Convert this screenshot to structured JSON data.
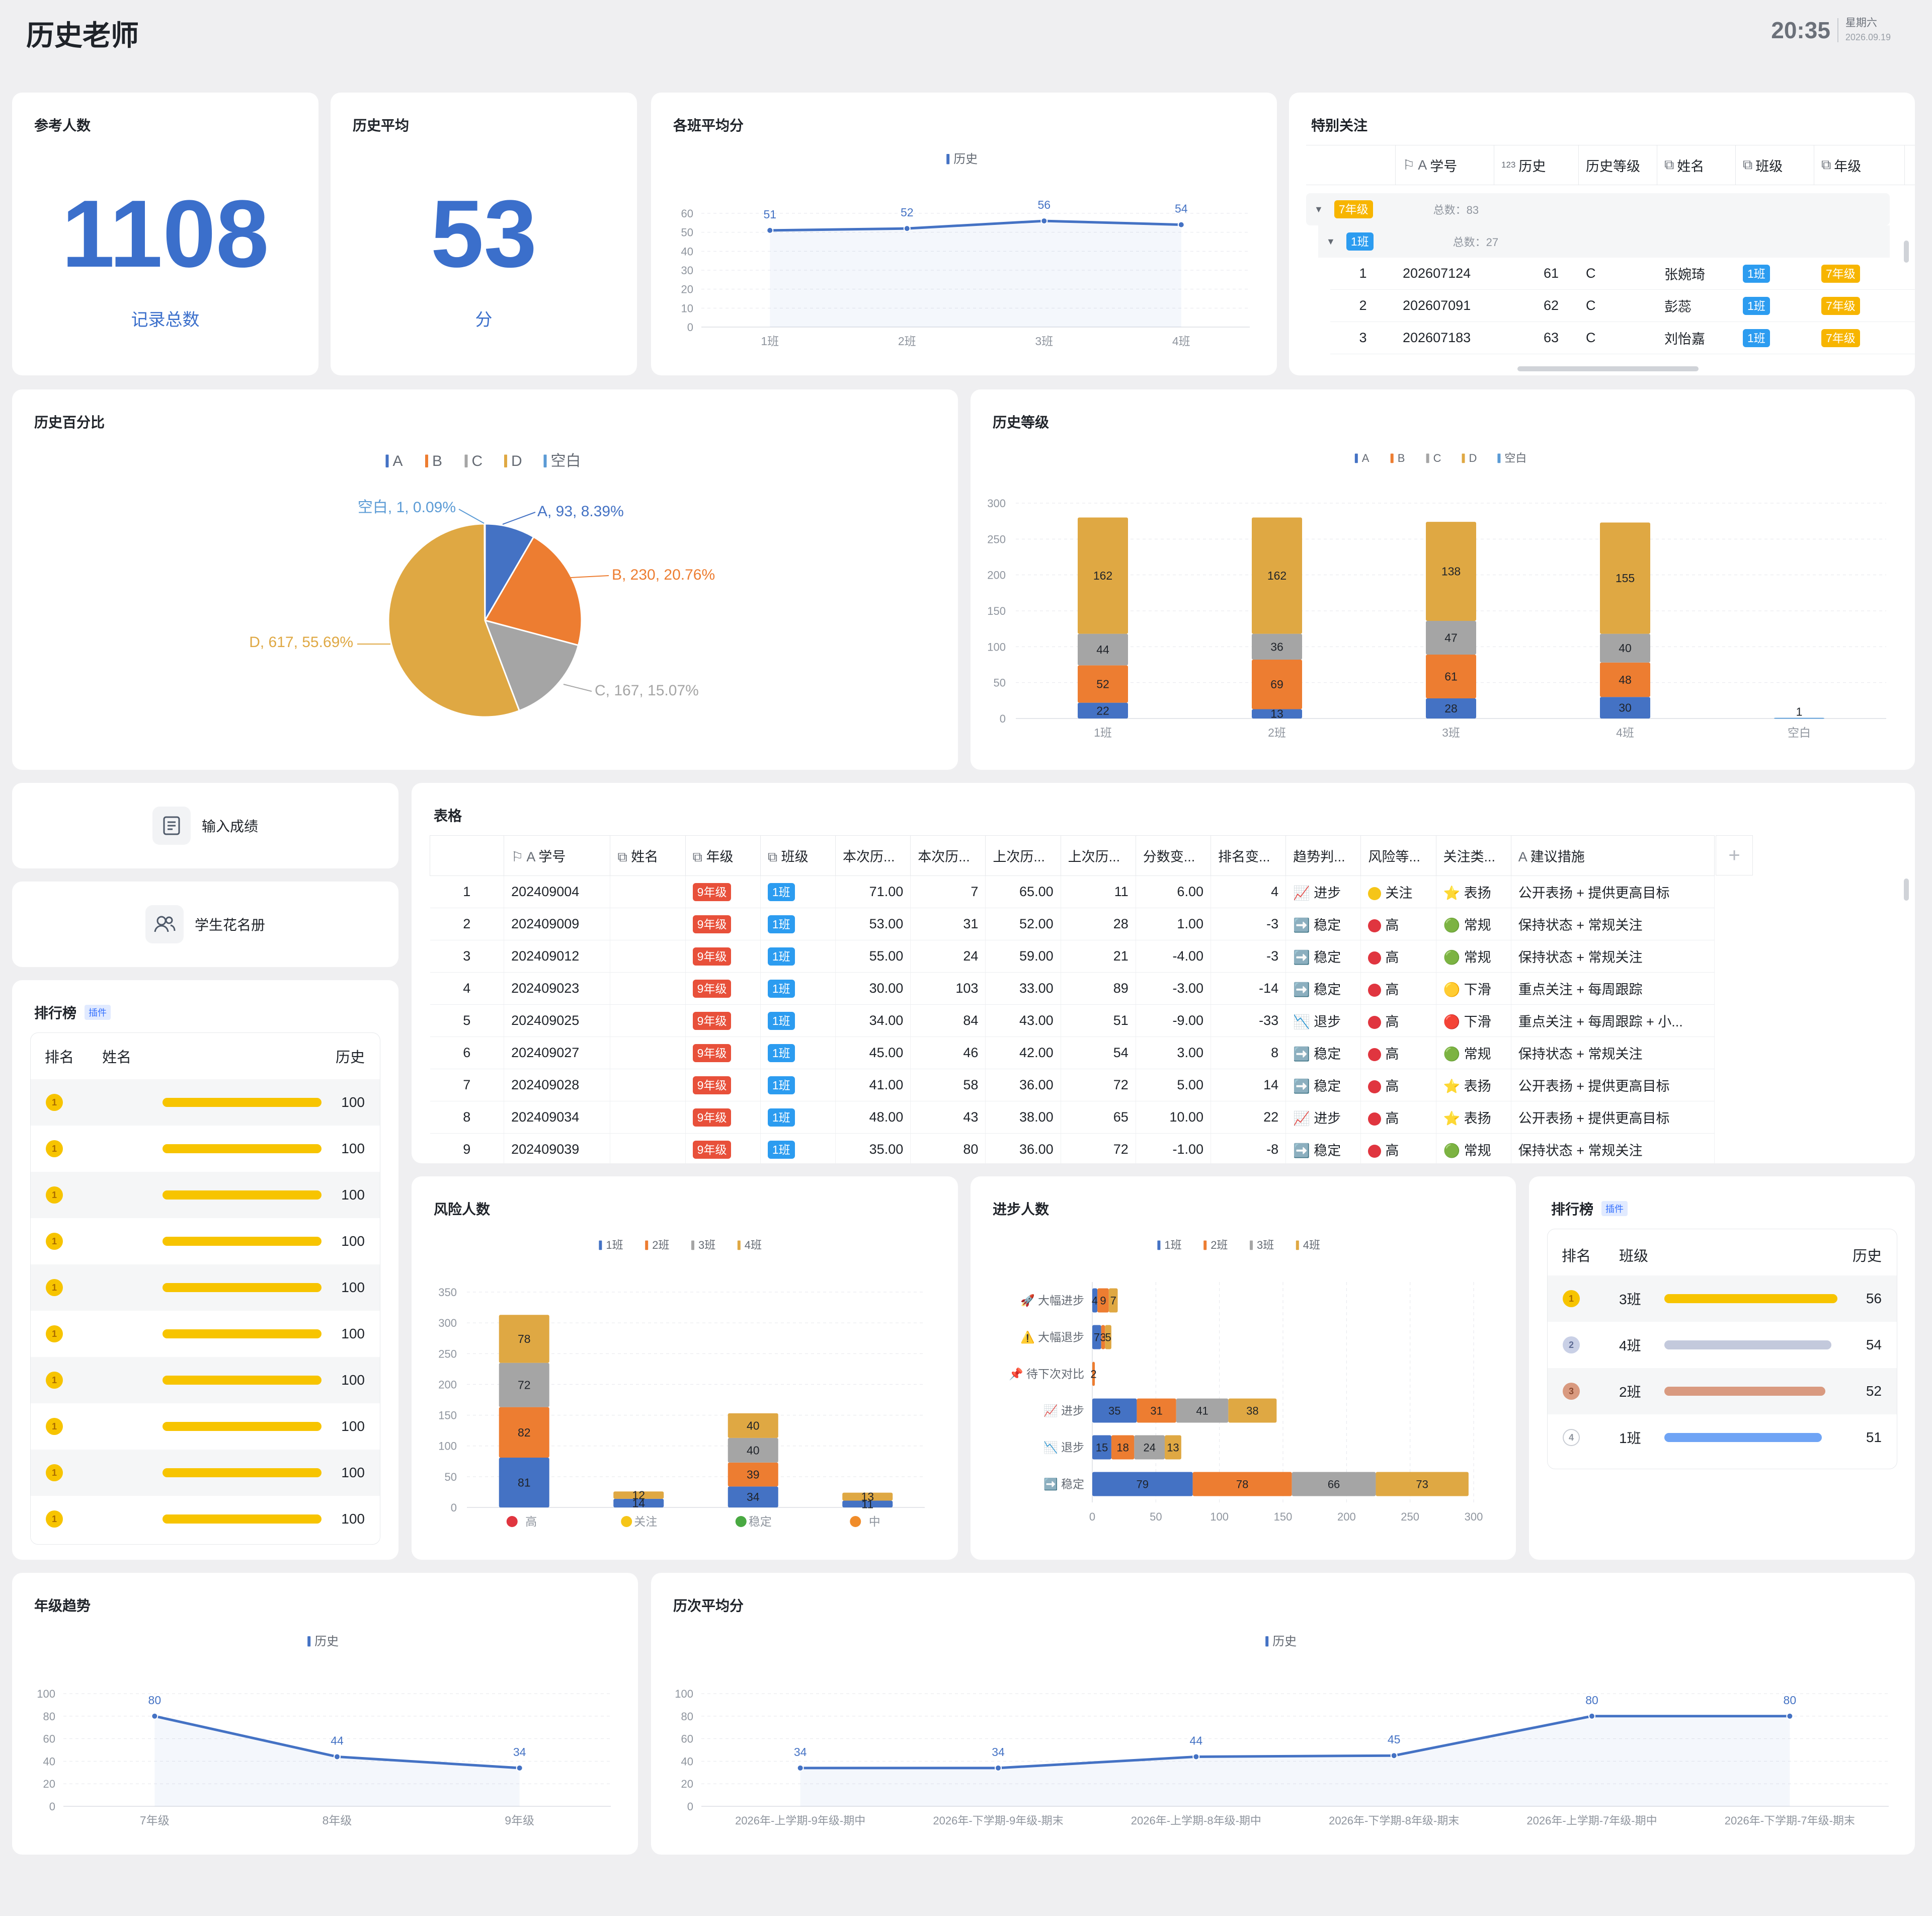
{
  "header": {
    "title": "历史老师",
    "time": "20:35",
    "weekday": "星期六",
    "date": "2026.09.19"
  },
  "stat_participants": {
    "title": "参考人数",
    "value": "1108",
    "caption": "记录总数",
    "color": "#3b6fcb"
  },
  "stat_average": {
    "title": "历史平均",
    "value": "53",
    "caption": "分",
    "color": "#3b6fcb"
  },
  "class_avg": {
    "title": "各班平均分"
  },
  "focus": {
    "title": "特别关注",
    "headers": [
      "学号",
      "历史",
      "历史等级",
      "姓名",
      "班级",
      "年级"
    ],
    "group_grade": "7年级",
    "group_grade_total": "总数：83",
    "group_class": "1班",
    "group_class_total": "总数：27",
    "rows": [
      {
        "idx": "1",
        "id": "202607124",
        "score": "61",
        "level": "C",
        "name": "张婉琦",
        "class": "1班",
        "grade": "7年级"
      },
      {
        "idx": "2",
        "id": "202607091",
        "score": "62",
        "level": "C",
        "name": "彭蕊",
        "class": "1班",
        "grade": "7年级"
      },
      {
        "idx": "3",
        "id": "202607183",
        "score": "63",
        "level": "C",
        "name": "刘怡嘉",
        "class": "1班",
        "grade": "7年级"
      }
    ]
  },
  "pie_card": {
    "title": "历史百分比"
  },
  "level_card": {
    "title": "历史等级"
  },
  "buttons": {
    "input_scores": "输入成绩",
    "student_roster": "学生花名册"
  },
  "table_card": {
    "title": "表格",
    "headers": [
      "学号",
      "姓名",
      "年级",
      "班级",
      "本次历...",
      "本次历...",
      "上次历...",
      "上次历...",
      "分数变...",
      "排名变...",
      "趋势判...",
      "风险等...",
      "关注类...",
      "建议措施"
    ],
    "rows": [
      {
        "idx": "1",
        "id": "202409004",
        "grade": "9年级",
        "class": "1班",
        "cur": "71.00",
        "cur_rank": "7",
        "prev": "65.00",
        "prev_rank": "11",
        "delta": "6.00",
        "rank_delta": "4",
        "trend_icon": "📈",
        "trend": "进步",
        "risk_color": "#f5c518",
        "risk": "关注",
        "focus_icon": "⭐",
        "focus": "表扬",
        "advice": "公开表扬 + 提供更高目标"
      },
      {
        "idx": "2",
        "id": "202409009",
        "grade": "9年级",
        "class": "1班",
        "cur": "53.00",
        "cur_rank": "31",
        "prev": "52.00",
        "prev_rank": "28",
        "delta": "1.00",
        "rank_delta": "-3",
        "trend_icon": "➡️",
        "trend": "稳定",
        "risk_color": "#e0353f",
        "risk": "高",
        "focus_icon": "🟢",
        "focus": "常规",
        "advice": "保持状态 + 常规关注"
      },
      {
        "idx": "3",
        "id": "202409012",
        "grade": "9年级",
        "class": "1班",
        "cur": "55.00",
        "cur_rank": "24",
        "prev": "59.00",
        "prev_rank": "21",
        "delta": "-4.00",
        "rank_delta": "-3",
        "trend_icon": "➡️",
        "trend": "稳定",
        "risk_color": "#e0353f",
        "risk": "高",
        "focus_icon": "🟢",
        "focus": "常规",
        "advice": "保持状态 + 常规关注"
      },
      {
        "idx": "4",
        "id": "202409023",
        "grade": "9年级",
        "class": "1班",
        "cur": "30.00",
        "cur_rank": "103",
        "prev": "33.00",
        "prev_rank": "89",
        "delta": "-3.00",
        "rank_delta": "-14",
        "trend_icon": "➡️",
        "trend": "稳定",
        "risk_color": "#e0353f",
        "risk": "高",
        "focus_icon": "🟡",
        "focus": "下滑",
        "advice": "重点关注 + 每周跟踪"
      },
      {
        "idx": "5",
        "id": "202409025",
        "grade": "9年级",
        "class": "1班",
        "cur": "34.00",
        "cur_rank": "84",
        "prev": "43.00",
        "prev_rank": "51",
        "delta": "-9.00",
        "rank_delta": "-33",
        "trend_icon": "📉",
        "trend": "退步",
        "risk_color": "#e0353f",
        "risk": "高",
        "focus_icon": "🔴",
        "focus": "下滑",
        "advice": "重点关注 + 每周跟踪 + 小..."
      },
      {
        "idx": "6",
        "id": "202409027",
        "grade": "9年级",
        "class": "1班",
        "cur": "45.00",
        "cur_rank": "46",
        "prev": "42.00",
        "prev_rank": "54",
        "delta": "3.00",
        "rank_delta": "8",
        "trend_icon": "➡️",
        "trend": "稳定",
        "risk_color": "#e0353f",
        "risk": "高",
        "focus_icon": "🟢",
        "focus": "常规",
        "advice": "保持状态 + 常规关注"
      },
      {
        "idx": "7",
        "id": "202409028",
        "grade": "9年级",
        "class": "1班",
        "cur": "41.00",
        "cur_rank": "58",
        "prev": "36.00",
        "prev_rank": "72",
        "delta": "5.00",
        "rank_delta": "14",
        "trend_icon": "➡️",
        "trend": "稳定",
        "risk_color": "#e0353f",
        "risk": "高",
        "focus_icon": "⭐",
        "focus": "表扬",
        "advice": "公开表扬 + 提供更高目标"
      },
      {
        "idx": "8",
        "id": "202409034",
        "grade": "9年级",
        "class": "1班",
        "cur": "48.00",
        "cur_rank": "43",
        "prev": "38.00",
        "prev_rank": "65",
        "delta": "10.00",
        "rank_delta": "22",
        "trend_icon": "📈",
        "trend": "进步",
        "risk_color": "#e0353f",
        "risk": "高",
        "focus_icon": "⭐",
        "focus": "表扬",
        "advice": "公开表扬 + 提供更高目标"
      },
      {
        "idx": "9",
        "id": "202409039",
        "grade": "9年级",
        "class": "1班",
        "cur": "35.00",
        "cur_rank": "80",
        "prev": "36.00",
        "prev_rank": "72",
        "delta": "-1.00",
        "rank_delta": "-8",
        "trend_icon": "➡️",
        "trend": "稳定",
        "risk_color": "#e0353f",
        "risk": "高",
        "focus_icon": "🟢",
        "focus": "常规",
        "advice": "保持状态 + 常规关注"
      }
    ]
  },
  "rank_students": {
    "title": "排行榜",
    "badge": "插件",
    "headers": [
      "排名",
      "姓名",
      "历史"
    ],
    "scores": [
      "100",
      "100",
      "100",
      "100",
      "100",
      "100",
      "100",
      "100",
      "100",
      "100"
    ],
    "score_fraction": 1.0
  },
  "risk_card": {
    "title": "风险人数"
  },
  "progress_card": {
    "title": "进步人数"
  },
  "rank_classes": {
    "title": "排行榜",
    "badge": "插件",
    "headers": [
      "排名",
      "班级",
      "历史"
    ],
    "rows": [
      {
        "rank": "1",
        "class": "3班",
        "score": "56",
        "color": "#f7c400"
      },
      {
        "rank": "2",
        "class": "4班",
        "score": "54",
        "color": "#c3c9dc"
      },
      {
        "rank": "3",
        "class": "2班",
        "score": "52",
        "color": "#d99a80"
      },
      {
        "rank": "4",
        "class": "1班",
        "score": "51",
        "color": "#6fa4f5"
      }
    ]
  },
  "grade_trend": {
    "title": "年级趋势"
  },
  "exam_avg": {
    "title": "历次平均分"
  },
  "colors": {
    "blue": "#4472c4",
    "orange": "#ed7d31",
    "gray": "#a5a5a5",
    "gold": "#dfa843",
    "series_line": "#4472c4"
  },
  "chart_data": [
    {
      "id": "class_avg",
      "type": "line",
      "series": [
        {
          "name": "历史",
          "values": [
            51,
            52,
            56,
            54
          ]
        }
      ],
      "categories": [
        "1班",
        "2班",
        "3班",
        "4班"
      ],
      "ylim": [
        0,
        60
      ],
      "yticks": [
        0,
        10,
        20,
        30,
        40,
        50,
        60
      ],
      "legend": "top"
    },
    {
      "id": "pie",
      "type": "pie",
      "legend_labels": [
        "A",
        "B",
        "C",
        "D",
        "空白"
      ],
      "slices": [
        {
          "label": "A",
          "value": 93,
          "pct": "8.39%",
          "text": "A, 93, 8.39%"
        },
        {
          "label": "B",
          "value": 230,
          "pct": "20.76%",
          "text": "B, 230, 20.76%"
        },
        {
          "label": "C",
          "value": 167,
          "pct": "15.07%",
          "text": "C, 167, 15.07%"
        },
        {
          "label": "D",
          "value": 617,
          "pct": "55.69%",
          "text": "D, 617, 55.69%"
        },
        {
          "label": "空白",
          "value": 1,
          "pct": "0.09%",
          "text": "空白, 1, 0.09%"
        }
      ]
    },
    {
      "id": "levels",
      "type": "bar",
      "stacked": true,
      "categories": [
        "1班",
        "2班",
        "3班",
        "4班",
        "空白"
      ],
      "series": [
        {
          "name": "A",
          "values": [
            22,
            13,
            28,
            30,
            0
          ]
        },
        {
          "name": "B",
          "values": [
            52,
            69,
            61,
            48,
            0
          ]
        },
        {
          "name": "C",
          "values": [
            44,
            36,
            47,
            40,
            0
          ]
        },
        {
          "name": "D",
          "values": [
            162,
            162,
            138,
            155,
            0
          ]
        },
        {
          "name": "空白",
          "values": [
            0,
            0,
            0,
            0,
            1
          ]
        }
      ],
      "ylim": [
        0,
        300
      ],
      "yticks": [
        0,
        50,
        100,
        150,
        200,
        250,
        300
      ]
    },
    {
      "id": "risk",
      "type": "bar",
      "stacked": true,
      "categories": [
        "高",
        "关注",
        "稳定",
        "中"
      ],
      "category_colors": [
        "#e0353f",
        "#f5c518",
        "#49a942",
        "#f08c2a"
      ],
      "series": [
        {
          "name": "1班",
          "values": [
            81,
            14,
            34,
            11
          ]
        },
        {
          "name": "2班",
          "values": [
            82,
            0,
            39,
            0
          ]
        },
        {
          "name": "3班",
          "values": [
            72,
            0,
            40,
            0
          ]
        },
        {
          "name": "4班",
          "values": [
            78,
            12,
            40,
            13
          ]
        }
      ],
      "ylim": [
        0,
        350
      ],
      "yticks": [
        0,
        50,
        100,
        150,
        200,
        250,
        300,
        350
      ]
    },
    {
      "id": "progress",
      "type": "bar",
      "orientation": "horizontal",
      "stacked": true,
      "categories": [
        "🚀 大幅进步",
        "⚠️ 大幅退步",
        "📌 待下次对比",
        "📈 进步",
        "📉 退步",
        "➡️ 稳定"
      ],
      "series": [
        {
          "name": "1班",
          "values": [
            4,
            7,
            0,
            35,
            15,
            79
          ]
        },
        {
          "name": "2班",
          "values": [
            9,
            3,
            2,
            31,
            18,
            78
          ]
        },
        {
          "name": "3班",
          "values": [
            0,
            0,
            0,
            41,
            24,
            66
          ]
        },
        {
          "name": "4班",
          "values": [
            7,
            5,
            0,
            38,
            13,
            73
          ]
        }
      ],
      "xlim": [
        0,
        300
      ],
      "xticks": [
        0,
        50,
        100,
        150,
        200,
        250,
        300
      ]
    },
    {
      "id": "grade_trend",
      "type": "line",
      "series": [
        {
          "name": "历史",
          "values": [
            80,
            44,
            34
          ]
        }
      ],
      "categories": [
        "7年级",
        "8年级",
        "9年级"
      ],
      "ylim": [
        0,
        100
      ],
      "yticks": [
        0,
        20,
        40,
        60,
        80,
        100
      ]
    },
    {
      "id": "exam_avg",
      "type": "line",
      "series": [
        {
          "name": "历史",
          "values": [
            34,
            34,
            44,
            45,
            80,
            80
          ]
        }
      ],
      "categories": [
        "2026年-上学期-9年级-期中",
        "2026年-下学期-9年级-期末",
        "2026年-上学期-8年级-期中",
        "2026年-下学期-8年级-期末",
        "2026年-上学期-7年级-期中",
        "2026年-下学期-7年级-期末"
      ],
      "ylim": [
        0,
        100
      ],
      "yticks": [
        0,
        20,
        40,
        60,
        80,
        100
      ]
    }
  ]
}
